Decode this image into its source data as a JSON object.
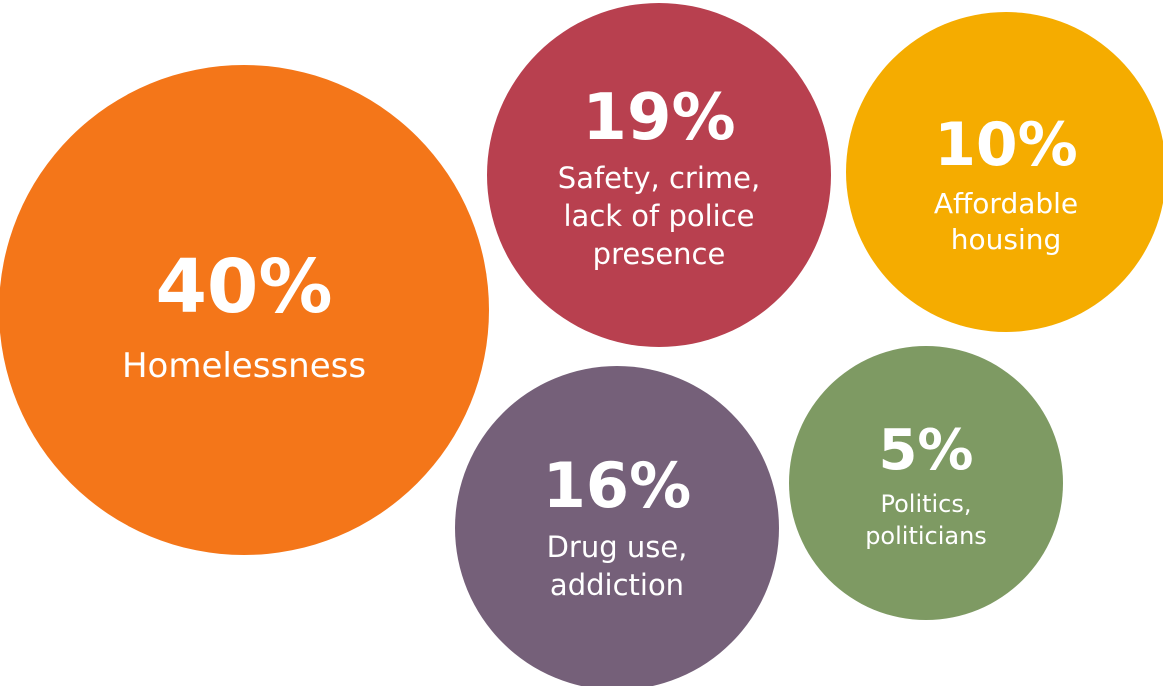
{
  "chart_data": {
    "type": "bubble",
    "unit": "%",
    "bubbles": [
      {
        "value": 40,
        "value_label": "40%",
        "label_lines": [
          "Homelessness"
        ],
        "color": "#F47619"
      },
      {
        "value": 19,
        "value_label": "19%",
        "label_lines": [
          "Safety, crime,",
          "lack of police",
          "presence"
        ],
        "color": "#B8404F"
      },
      {
        "value": 10,
        "value_label": "10%",
        "label_lines": [
          "Affordable",
          "housing"
        ],
        "color": "#F5AC00"
      },
      {
        "value": 16,
        "value_label": "16%",
        "label_lines": [
          "Drug use,",
          "addiction"
        ],
        "color": "#756079"
      },
      {
        "value": 5,
        "value_label": "5%",
        "label_lines": [
          "Politics,",
          "politicians"
        ],
        "color": "#7E9A63"
      }
    ]
  }
}
